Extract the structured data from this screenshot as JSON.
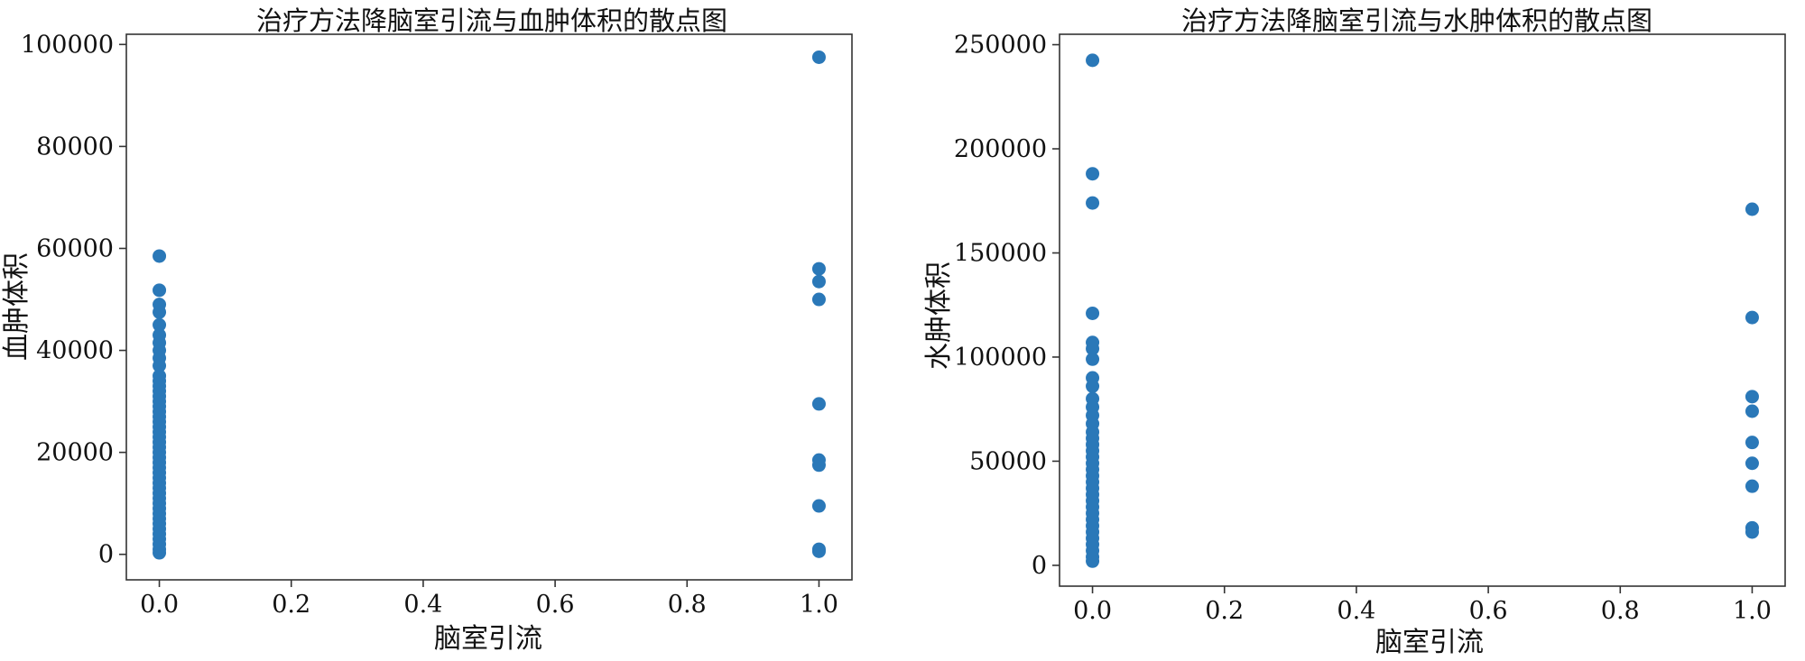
{
  "chart_data": [
    {
      "type": "scatter",
      "title": "治疗方法降脑室引流与血肿体积的散点图",
      "xlabel": "脑室引流",
      "ylabel": "血肿体积",
      "xlim": [
        -0.05,
        1.05
      ],
      "ylim": [
        -5000,
        102000
      ],
      "xticks": [
        0.0,
        0.2,
        0.4,
        0.6,
        0.8,
        1.0
      ],
      "xtick_labels": [
        "0.0",
        "0.2",
        "0.4",
        "0.6",
        "0.8",
        "1.0"
      ],
      "yticks": [
        0,
        20000,
        40000,
        60000,
        80000,
        100000
      ],
      "ytick_labels": [
        "0",
        "20000",
        "40000",
        "60000",
        "80000",
        "100000"
      ],
      "grid": false,
      "color": "#2a78b8",
      "points": [
        [
          0,
          58500
        ],
        [
          0,
          51800
        ],
        [
          0,
          49000
        ],
        [
          0,
          47500
        ],
        [
          0,
          45000
        ],
        [
          0,
          43000
        ],
        [
          0,
          41500
        ],
        [
          0,
          40000
        ],
        [
          0,
          38500
        ],
        [
          0,
          37000
        ],
        [
          0,
          35000
        ],
        [
          0,
          34000
        ],
        [
          0,
          33000
        ],
        [
          0,
          32000
        ],
        [
          0,
          31000
        ],
        [
          0,
          30000
        ],
        [
          0,
          29000
        ],
        [
          0,
          28000
        ],
        [
          0,
          27000
        ],
        [
          0,
          26000
        ],
        [
          0,
          25000
        ],
        [
          0,
          24000
        ],
        [
          0,
          23000
        ],
        [
          0,
          22000
        ],
        [
          0,
          21000
        ],
        [
          0,
          20000
        ],
        [
          0,
          19000
        ],
        [
          0,
          18000
        ],
        [
          0,
          17000
        ],
        [
          0,
          16000
        ],
        [
          0,
          15000
        ],
        [
          0,
          14000
        ],
        [
          0,
          13000
        ],
        [
          0,
          12000
        ],
        [
          0,
          11000
        ],
        [
          0,
          10000
        ],
        [
          0,
          9000
        ],
        [
          0,
          8000
        ],
        [
          0,
          7000
        ],
        [
          0,
          6000
        ],
        [
          0,
          5000
        ],
        [
          0,
          4000
        ],
        [
          0,
          3000
        ],
        [
          0,
          2000
        ],
        [
          0,
          1000
        ],
        [
          0,
          300
        ],
        [
          1,
          97500
        ],
        [
          1,
          56000
        ],
        [
          1,
          53500
        ],
        [
          1,
          50000
        ],
        [
          1,
          29500
        ],
        [
          1,
          18500
        ],
        [
          1,
          17500
        ],
        [
          1,
          9500
        ],
        [
          1,
          1000
        ],
        [
          1,
          600
        ]
      ]
    },
    {
      "type": "scatter",
      "title": "治疗方法降脑室引流与水肿体积的散点图",
      "xlabel": "脑室引流",
      "ylabel": "水肿体积",
      "xlim": [
        -0.05,
        1.05
      ],
      "ylim": [
        -10000,
        255000
      ],
      "xticks": [
        0.0,
        0.2,
        0.4,
        0.6,
        0.8,
        1.0
      ],
      "xtick_labels": [
        "0.0",
        "0.2",
        "0.4",
        "0.6",
        "0.8",
        "1.0"
      ],
      "yticks": [
        0,
        50000,
        100000,
        150000,
        200000,
        250000
      ],
      "ytick_labels": [
        "0",
        "50000",
        "100000",
        "150000",
        "200000",
        "250000"
      ],
      "grid": false,
      "color": "#2a78b8",
      "points": [
        [
          0,
          242500
        ],
        [
          0,
          188000
        ],
        [
          0,
          174000
        ],
        [
          0,
          121000
        ],
        [
          0,
          107000
        ],
        [
          0,
          104000
        ],
        [
          0,
          99000
        ],
        [
          0,
          90000
        ],
        [
          0,
          86000
        ],
        [
          0,
          80000
        ],
        [
          0,
          76000
        ],
        [
          0,
          72000
        ],
        [
          0,
          68000
        ],
        [
          0,
          64000
        ],
        [
          0,
          61000
        ],
        [
          0,
          58000
        ],
        [
          0,
          55000
        ],
        [
          0,
          52000
        ],
        [
          0,
          49000
        ],
        [
          0,
          46000
        ],
        [
          0,
          43000
        ],
        [
          0,
          40000
        ],
        [
          0,
          37000
        ],
        [
          0,
          34000
        ],
        [
          0,
          31000
        ],
        [
          0,
          28000
        ],
        [
          0,
          25000
        ],
        [
          0,
          22000
        ],
        [
          0,
          19000
        ],
        [
          0,
          16000
        ],
        [
          0,
          13000
        ],
        [
          0,
          10000
        ],
        [
          0,
          7000
        ],
        [
          0,
          4000
        ],
        [
          0,
          2000
        ],
        [
          1,
          171000
        ],
        [
          1,
          119000
        ],
        [
          1,
          81000
        ],
        [
          1,
          74000
        ],
        [
          1,
          59000
        ],
        [
          1,
          49000
        ],
        [
          1,
          38000
        ],
        [
          1,
          18000
        ],
        [
          1,
          16000
        ]
      ]
    }
  ]
}
